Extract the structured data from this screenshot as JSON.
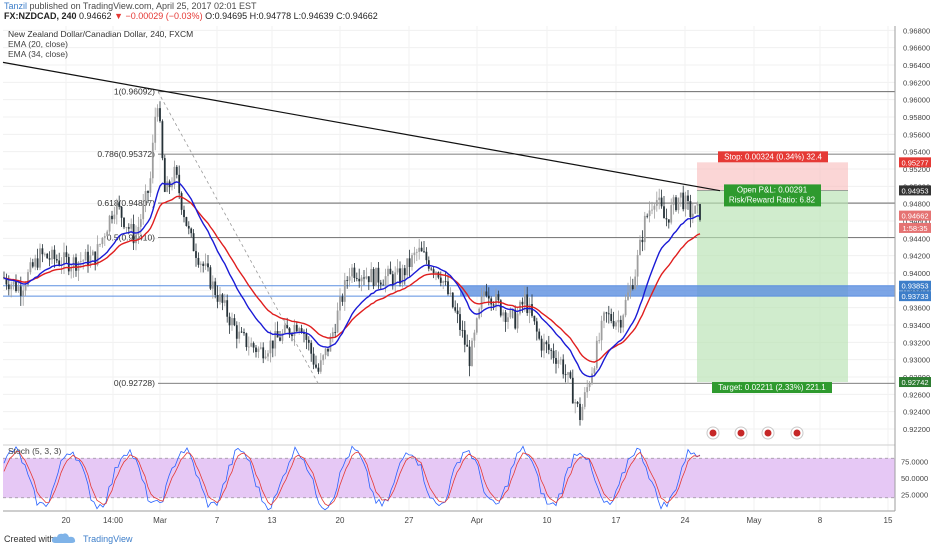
{
  "header": {
    "user": "Tanzil",
    "published": "published on TradingView.com, April 25, 2017 02:01 EST",
    "symbol": "FX:NZDCAD, 240",
    "price": "0.94662",
    "change": "▼ −0.00029 (−0.03%)",
    "ohlc": "O:0.94695 H:0.94778 L:0.94639 C:0.94662"
  },
  "legend": {
    "title": "New Zealand Dollar/Canadian Dollar, 240, FXCM",
    "ema1": "EMA (20, close)",
    "ema2": "EMA (34, close)",
    "stoch": "Stoch (5, 3, 3)"
  },
  "footer": {
    "created": "Created with",
    "brand": "TradingView"
  },
  "chart_data": {
    "type": "candlestick",
    "price_axis": {
      "ylim": [
        0.9205,
        0.9685
      ],
      "ticks": [
        0.968,
        0.966,
        0.964,
        0.962,
        0.96,
        0.958,
        0.956,
        0.954,
        0.952,
        0.95,
        0.948,
        0.946,
        0.944,
        0.942,
        0.94,
        0.938,
        0.936,
        0.934,
        0.932,
        0.93,
        0.928,
        0.926,
        0.924,
        0.922
      ],
      "tick_labels": [
        "0.96800",
        "0.96600",
        "0.96400",
        "0.96200",
        "0.96000",
        "0.95800",
        "0.95600",
        "0.95400",
        "0.95200",
        "0.95000",
        "0.94800",
        "0.94600",
        "0.94400",
        "0.94200",
        "0.94000",
        "0.93800",
        "0.93600",
        "0.93400",
        "0.93200",
        "0.93000",
        "0.92800",
        "0.92600",
        "0.92400",
        "0.92200"
      ]
    },
    "time_axis": {
      "labels": [
        "20",
        "14:00",
        "Mar",
        "7",
        "13",
        "20",
        "27",
        "Apr",
        "10",
        "17",
        "24",
        "May",
        "8",
        "15"
      ]
    },
    "fibonacci": [
      {
        "label": "1(0.96092)",
        "value": 0.96092
      },
      {
        "label": "0.786(0.95372)",
        "value": 0.95372
      },
      {
        "label": "0.618(0.94807)",
        "value": 0.94807
      },
      {
        "label": "0.5(0.94410)",
        "value": 0.9441
      },
      {
        "label": "0(0.92728)",
        "value": 0.92728
      }
    ],
    "position": {
      "stop_text": "Stop: 0.00324 (0.34%) 32.4",
      "pnl_text": "Open P&L: 0.00291",
      "rr_text": "Risk/Reward Ratio: 6.82",
      "target_text": "Target: 0.02211 (2.33%) 221.1",
      "entry": 0.94953,
      "stop": 0.95277,
      "target": 0.92742
    },
    "price_badges": [
      {
        "text": "0.95277",
        "value": 0.95277,
        "color": "#e53935"
      },
      {
        "text": "0.94953",
        "value": 0.94953,
        "color": "#333333"
      },
      {
        "text": "0.94662",
        "value": 0.94662,
        "color": "#e57373"
      },
      {
        "text": "1:58:35",
        "value": 0.9452,
        "color": "#e57373"
      },
      {
        "text": "0.93853",
        "value": 0.93853,
        "color": "#3d7ec9"
      },
      {
        "text": "0.93733",
        "value": 0.93733,
        "color": "#3d7ec9"
      },
      {
        "text": "0.92742",
        "value": 0.92742,
        "color": "#2e7d32"
      }
    ],
    "zone": {
      "low": 0.93733,
      "high": 0.93853,
      "color": "#5b8fe0"
    },
    "trendline": {
      "start": 0.9643,
      "end": 0.9495
    },
    "stochastic": {
      "ticks": [
        75,
        50,
        25
      ],
      "tick_labels": [
        "75.0000",
        "50.0000",
        "25.0000"
      ],
      "overbought": 80,
      "oversold": 20
    },
    "ema20_color": "#1a1ad6",
    "ema34_color": "#e01e1e",
    "up_color": "#9e9e9e",
    "down_color": "#263238"
  }
}
